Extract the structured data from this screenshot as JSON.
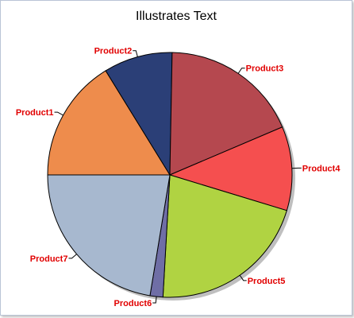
{
  "chart_data": {
    "type": "pie",
    "title": "Illustrates Text",
    "categories": [
      "Product1",
      "Product2",
      "Product3",
      "Product4",
      "Product5",
      "Product6",
      "Product7"
    ],
    "values": [
      16.2,
      9.1,
      18.3,
      11.1,
      21.2,
      1.7,
      22.4
    ],
    "colors": [
      "#ee8c4c",
      "#2b3f77",
      "#b5484f",
      "#f54f4f",
      "#b0d342",
      "#6f6ea6",
      "#a7b8cf"
    ],
    "label_color": "#e10000",
    "legend": "none",
    "start_direction": "left (9 o'clock), clockwise"
  }
}
